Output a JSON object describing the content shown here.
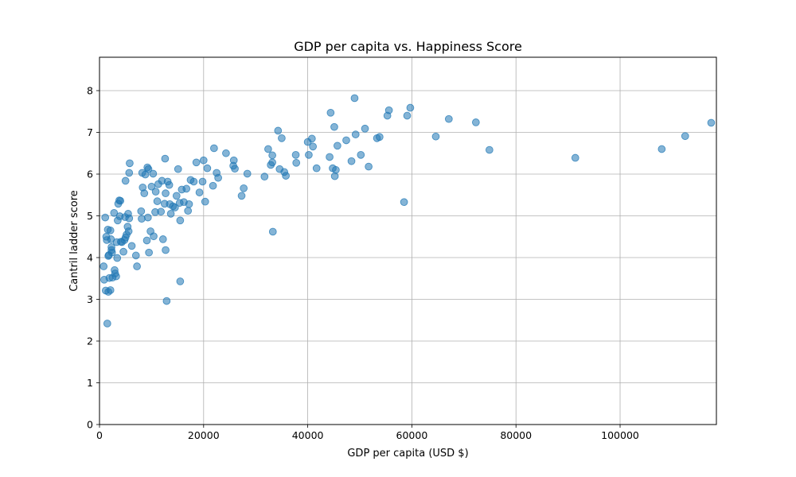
{
  "chart_data": {
    "type": "scatter",
    "title": "GDP per capita vs. Happiness Score",
    "xlabel": "GDP per capita (USD $)",
    "ylabel": "Cantril ladder score",
    "xlim": [
      0,
      118500
    ],
    "ylim": [
      0,
      8.8
    ],
    "xticks": [
      0,
      20000,
      40000,
      60000,
      80000,
      100000
    ],
    "yticks": [
      0,
      1,
      2,
      3,
      4,
      5,
      6,
      7,
      8
    ],
    "grid": true,
    "marker_color": "#1f77b4",
    "marker_alpha": 0.55,
    "points": [
      [
        1100,
        4.96
      ],
      [
        1300,
        4.5
      ],
      [
        1400,
        4.42
      ],
      [
        1600,
        4.67
      ],
      [
        1700,
        4.04
      ],
      [
        1800,
        4.06
      ],
      [
        1900,
        3.51
      ],
      [
        1700,
        3.18
      ],
      [
        1200,
        3.21
      ],
      [
        800,
        3.79
      ],
      [
        900,
        3.47
      ],
      [
        1500,
        2.42
      ],
      [
        2100,
        4.65
      ],
      [
        2200,
        4.44
      ],
      [
        2300,
        4.25
      ],
      [
        2300,
        4.18
      ],
      [
        2400,
        4.12
      ],
      [
        2500,
        3.52
      ],
      [
        2100,
        3.22
      ],
      [
        2800,
        5.07
      ],
      [
        2900,
        3.7
      ],
      [
        3000,
        3.62
      ],
      [
        3200,
        3.55
      ],
      [
        3300,
        4.37
      ],
      [
        3400,
        3.99
      ],
      [
        3500,
        4.89
      ],
      [
        3600,
        5.29
      ],
      [
        3800,
        5.37
      ],
      [
        3900,
        4.99
      ],
      [
        4000,
        5.36
      ],
      [
        4100,
        4.38
      ],
      [
        4300,
        4.37
      ],
      [
        4600,
        4.14
      ],
      [
        4800,
        4.42
      ],
      [
        4900,
        4.97
      ],
      [
        5000,
        4.48
      ],
      [
        5000,
        5.84
      ],
      [
        5200,
        4.55
      ],
      [
        5400,
        4.74
      ],
      [
        5500,
        5.05
      ],
      [
        5600,
        4.63
      ],
      [
        5700,
        4.94
      ],
      [
        5700,
        6.03
      ],
      [
        5800,
        6.26
      ],
      [
        6200,
        4.28
      ],
      [
        7000,
        4.05
      ],
      [
        7200,
        3.79
      ],
      [
        8000,
        5.11
      ],
      [
        8100,
        4.93
      ],
      [
        8200,
        6.03
      ],
      [
        8300,
        5.68
      ],
      [
        8600,
        5.54
      ],
      [
        8800,
        5.99
      ],
      [
        9100,
        4.41
      ],
      [
        9200,
        6.16
      ],
      [
        9300,
        4.96
      ],
      [
        9400,
        6.12
      ],
      [
        9500,
        4.12
      ],
      [
        9800,
        4.63
      ],
      [
        10000,
        5.7
      ],
      [
        10300,
        6.01
      ],
      [
        10400,
        4.51
      ],
      [
        10700,
        5.09
      ],
      [
        10800,
        5.58
      ],
      [
        11100,
        5.35
      ],
      [
        11300,
        5.76
      ],
      [
        11800,
        5.1
      ],
      [
        12000,
        5.84
      ],
      [
        12200,
        4.44
      ],
      [
        12500,
        5.29
      ],
      [
        12600,
        6.37
      ],
      [
        12700,
        5.54
      ],
      [
        12700,
        4.18
      ],
      [
        12900,
        2.96
      ],
      [
        13100,
        5.82
      ],
      [
        13400,
        5.74
      ],
      [
        13500,
        5.28
      ],
      [
        13700,
        5.05
      ],
      [
        14100,
        5.23
      ],
      [
        14500,
        5.2
      ],
      [
        14800,
        5.48
      ],
      [
        15100,
        6.12
      ],
      [
        15400,
        5.31
      ],
      [
        15500,
        4.89
      ],
      [
        15500,
        3.43
      ],
      [
        15800,
        5.63
      ],
      [
        16200,
        5.33
      ],
      [
        16700,
        5.65
      ],
      [
        17000,
        5.12
      ],
      [
        17200,
        5.28
      ],
      [
        17500,
        5.86
      ],
      [
        18100,
        5.82
      ],
      [
        18600,
        6.28
      ],
      [
        19200,
        5.56
      ],
      [
        19800,
        5.82
      ],
      [
        20000,
        6.33
      ],
      [
        20300,
        5.34
      ],
      [
        20700,
        6.14
      ],
      [
        21800,
        5.72
      ],
      [
        22000,
        6.62
      ],
      [
        22500,
        6.03
      ],
      [
        22800,
        5.91
      ],
      [
        24300,
        6.5
      ],
      [
        25700,
        6.2
      ],
      [
        25800,
        6.33
      ],
      [
        26000,
        6.13
      ],
      [
        27300,
        5.48
      ],
      [
        27700,
        5.66
      ],
      [
        28400,
        6.01
      ],
      [
        31700,
        5.94
      ],
      [
        32400,
        6.6
      ],
      [
        32900,
        6.22
      ],
      [
        33200,
        6.45
      ],
      [
        33200,
        6.28
      ],
      [
        33300,
        4.62
      ],
      [
        34300,
        7.04
      ],
      [
        34600,
        6.12
      ],
      [
        35000,
        6.86
      ],
      [
        35500,
        6.05
      ],
      [
        35800,
        5.96
      ],
      [
        37700,
        6.46
      ],
      [
        37800,
        6.27
      ],
      [
        40000,
        6.77
      ],
      [
        40200,
        6.46
      ],
      [
        40800,
        6.85
      ],
      [
        41000,
        6.66
      ],
      [
        41700,
        6.14
      ],
      [
        44200,
        6.41
      ],
      [
        44400,
        7.47
      ],
      [
        44800,
        6.14
      ],
      [
        45100,
        7.13
      ],
      [
        45200,
        5.95
      ],
      [
        45400,
        6.1
      ],
      [
        45700,
        6.68
      ],
      [
        47400,
        6.81
      ],
      [
        48400,
        6.31
      ],
      [
        49000,
        7.82
      ],
      [
        49200,
        6.95
      ],
      [
        50200,
        6.46
      ],
      [
        51000,
        7.09
      ],
      [
        51700,
        6.18
      ],
      [
        53300,
        6.86
      ],
      [
        53800,
        6.89
      ],
      [
        55300,
        7.4
      ],
      [
        55600,
        7.53
      ],
      [
        58500,
        5.33
      ],
      [
        59100,
        7.4
      ],
      [
        59700,
        7.59
      ],
      [
        64600,
        6.9
      ],
      [
        67100,
        7.32
      ],
      [
        72300,
        7.24
      ],
      [
        74900,
        6.58
      ],
      [
        91400,
        6.39
      ],
      [
        108000,
        6.6
      ],
      [
        112500,
        6.91
      ],
      [
        117500,
        7.23
      ]
    ]
  }
}
